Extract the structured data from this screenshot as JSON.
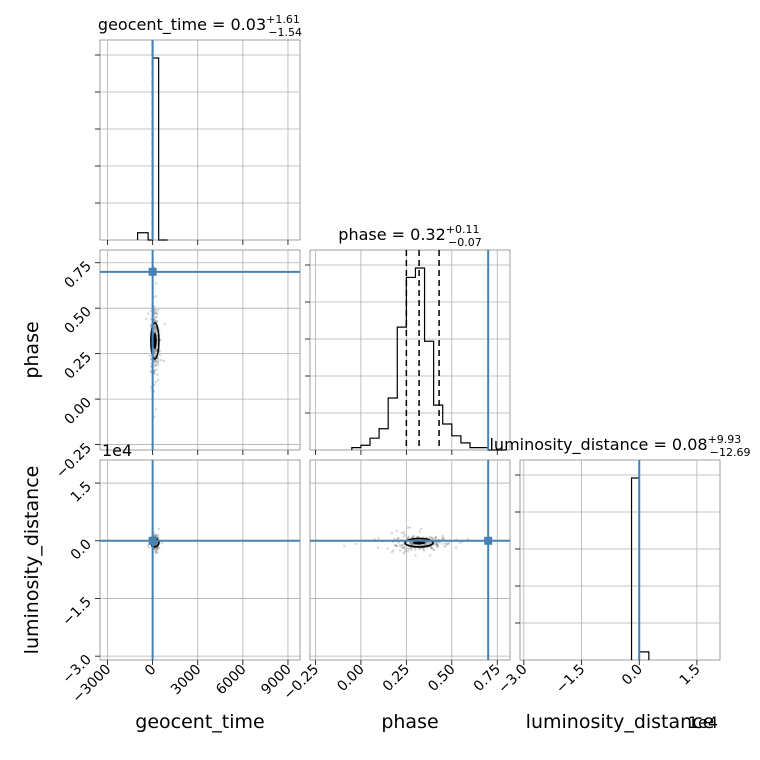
{
  "chart_data": {
    "type": "corner",
    "truth_color": "#4682b4",
    "parameters": [
      {
        "name": "geocent_time",
        "xlabel": "geocent_time",
        "ylabel": "",
        "range": [
          -3500,
          9800
        ],
        "ticks": [
          -3000,
          0,
          3000,
          6000,
          9000
        ],
        "tick_labels": [
          "−3000",
          "0",
          "3000",
          "6000",
          "9000"
        ],
        "median": 0.03,
        "plus": "+1.61",
        "minus": "−1.54",
        "title_value": "0.03",
        "truth": 0,
        "quantiles": [
          -1.51,
          0.03,
          1.64
        ],
        "hist_edges": [
          -1000,
          -300,
          0,
          400,
          1000
        ],
        "hist_counts": [
          0.04,
          0.0,
          1.0,
          0.0
        ]
      },
      {
        "name": "phase",
        "xlabel": "phase",
        "ylabel": "phase",
        "range": [
          -0.28,
          0.82
        ],
        "ticks": [
          -0.25,
          0.0,
          0.25,
          0.5,
          0.75
        ],
        "tick_labels": [
          "−0.25",
          "0.00",
          "0.25",
          "0.50",
          "0.75"
        ],
        "median": 0.32,
        "plus": "+0.11",
        "minus": "−0.07",
        "title_value": "0.32",
        "truth": 0.7,
        "quantiles": [
          0.25,
          0.32,
          0.43
        ],
        "hist_edges": [
          -0.05,
          0.0,
          0.05,
          0.1,
          0.15,
          0.2,
          0.25,
          0.3,
          0.35,
          0.4,
          0.45,
          0.5,
          0.55,
          0.6,
          0.65,
          0.7,
          0.75,
          0.8
        ],
        "hist_counts": [
          0.01,
          0.02,
          0.05,
          0.09,
          0.22,
          0.52,
          0.73,
          0.77,
          0.46,
          0.19,
          0.11,
          0.06,
          0.03,
          0.01,
          0.01,
          0.0,
          0.0
        ]
      },
      {
        "name": "luminosity_distance",
        "xlabel": "luminosity_distance",
        "ylabel": "luminosity_distance",
        "range": [
          -3.1,
          2.1
        ],
        "ticks": [
          -3.0,
          -1.5,
          0.0,
          1.5
        ],
        "tick_labels": [
          "−3.0",
          "−1.5",
          "0.0",
          "1.5"
        ],
        "offset_label": "1e4",
        "median": 0.08,
        "plus": "+9.93",
        "minus": "−12.69",
        "title_value": "0.08",
        "truth": 0.0,
        "hist_edges": [
          -0.2,
          0.0,
          0.25
        ],
        "hist_counts": [
          0.9,
          0.04
        ]
      }
    ],
    "joint": [
      {
        "x": "geocent_time",
        "y": "phase",
        "center": [
          150,
          0.32
        ],
        "spread": [
          120,
          0.09
        ]
      },
      {
        "x": "geocent_time",
        "y": "luminosity_distance",
        "center": [
          150,
          -0.05
        ],
        "spread": [
          120,
          0.08
        ]
      },
      {
        "x": "phase",
        "y": "luminosity_distance",
        "center": [
          0.32,
          -0.05
        ],
        "spread": [
          0.07,
          0.1
        ]
      }
    ]
  }
}
